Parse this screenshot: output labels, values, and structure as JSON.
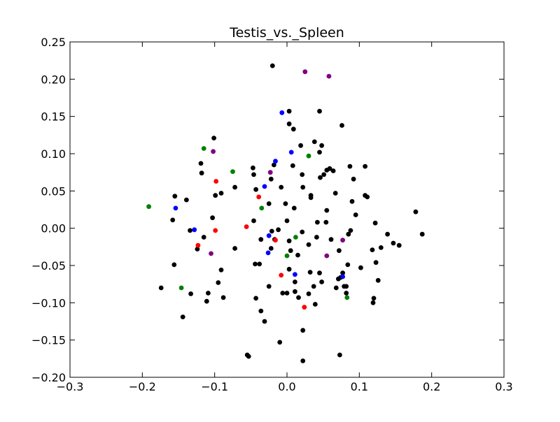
{
  "chart_data": {
    "type": "scatter",
    "title": "Testis_vs._Spleen",
    "xlabel": "",
    "ylabel": "",
    "xlim": [
      -0.3,
      0.3
    ],
    "ylim": [
      -0.2,
      0.25
    ],
    "x_ticks": [
      -0.3,
      -0.2,
      -0.1,
      0.0,
      0.1,
      0.2,
      0.3
    ],
    "x_tick_labels": [
      "−0.3",
      "−0.2",
      "−0.1",
      "0.0",
      "0.1",
      "0.2",
      "0.3"
    ],
    "y_ticks": [
      -0.2,
      -0.15,
      -0.1,
      -0.05,
      0.0,
      0.05,
      0.1,
      0.15,
      0.2,
      0.25
    ],
    "y_tick_labels": [
      "−0.20",
      "−0.15",
      "−0.10",
      "−0.05",
      "0.00",
      "0.05",
      "0.10",
      "0.15",
      "0.20",
      "0.25"
    ],
    "grid": false,
    "legend": "none",
    "colors": {
      "black": "#000000",
      "blue": "#0000ff",
      "red": "#ff0000",
      "green": "#008000",
      "purple": "#800080"
    },
    "series": [
      {
        "color": "#000000",
        "points": [
          [
            -0.02,
            0.218
          ],
          [
            0.045,
            0.157
          ],
          [
            0.003,
            0.157
          ],
          [
            0.076,
            0.138
          ],
          [
            0.003,
            0.14
          ],
          [
            0.009,
            0.133
          ],
          [
            -0.101,
            0.121
          ],
          [
            0.038,
            0.116
          ],
          [
            0.048,
            0.111
          ],
          [
            0.019,
            0.111
          ],
          [
            0.045,
            0.102
          ],
          [
            -0.119,
            0.087
          ],
          [
            -0.018,
            0.085
          ],
          [
            0.087,
            0.083
          ],
          [
            0.108,
            0.083
          ],
          [
            0.008,
            0.084
          ],
          [
            -0.047,
            0.081
          ],
          [
            0.059,
            0.08
          ],
          [
            0.055,
            0.078
          ],
          [
            0.064,
            0.077
          ],
          [
            -0.118,
            0.074
          ],
          [
            -0.046,
            0.072
          ],
          [
            0.021,
            0.072
          ],
          [
            0.051,
            0.072
          ],
          [
            0.046,
            0.068
          ],
          [
            -0.022,
            0.066
          ],
          [
            0.092,
            0.066
          ],
          [
            -0.072,
            0.055
          ],
          [
            -0.008,
            0.055
          ],
          [
            0.022,
            0.055
          ],
          [
            -0.043,
            0.052
          ],
          [
            0.067,
            0.047
          ],
          [
            -0.091,
            0.047
          ],
          [
            -0.099,
            0.044
          ],
          [
            0.033,
            0.044
          ],
          [
            0.033,
            0.041
          ],
          [
            0.108,
            0.044
          ],
          [
            0.111,
            0.042
          ],
          [
            -0.155,
            0.043
          ],
          [
            -0.139,
            0.038
          ],
          [
            0.09,
            0.036
          ],
          [
            -0.025,
            0.033
          ],
          [
            -0.002,
            0.033
          ],
          [
            0.01,
            0.027
          ],
          [
            0.055,
            0.024
          ],
          [
            0.178,
            0.022
          ],
          [
            0.095,
            0.018
          ],
          [
            -0.103,
            0.014
          ],
          [
            -0.046,
            0.01
          ],
          [
            0.0,
            0.01
          ],
          [
            0.042,
            0.008
          ],
          [
            0.054,
            0.008
          ],
          [
            0.122,
            0.007
          ],
          [
            -0.158,
            0.011
          ],
          [
            -0.134,
            -0.003
          ],
          [
            -0.012,
            -0.002
          ],
          [
            -0.021,
            -0.004
          ],
          [
            0.021,
            -0.005
          ],
          [
            0.088,
            -0.003
          ],
          [
            0.085,
            -0.008
          ],
          [
            0.139,
            -0.008
          ],
          [
            0.187,
            -0.008
          ],
          [
            -0.115,
            -0.012
          ],
          [
            0.041,
            -0.012
          ],
          [
            -0.036,
            -0.015
          ],
          [
            -0.017,
            -0.015
          ],
          [
            0.061,
            -0.015
          ],
          [
            0.003,
            -0.017
          ],
          [
            0.147,
            -0.02
          ],
          [
            0.155,
            -0.023
          ],
          [
            0.03,
            -0.022
          ],
          [
            0.13,
            -0.026
          ],
          [
            -0.022,
            -0.027
          ],
          [
            -0.072,
            -0.027
          ],
          [
            -0.124,
            -0.028
          ],
          [
            0.072,
            -0.03
          ],
          [
            0.118,
            -0.029
          ],
          [
            0.005,
            -0.03
          ],
          [
            0.015,
            -0.036
          ],
          [
            0.123,
            -0.046
          ],
          [
            0.084,
            -0.049
          ],
          [
            -0.156,
            -0.049
          ],
          [
            -0.044,
            -0.048
          ],
          [
            -0.038,
            -0.048
          ],
          [
            0.003,
            -0.055
          ],
          [
            0.102,
            -0.053
          ],
          [
            -0.091,
            -0.056
          ],
          [
            0.032,
            -0.059
          ],
          [
            0.045,
            -0.06
          ],
          [
            0.077,
            -0.06
          ],
          [
            0.074,
            -0.066
          ],
          [
            0.071,
            -0.068
          ],
          [
            0.126,
            -0.07
          ],
          [
            -0.095,
            -0.073
          ],
          [
            0.011,
            -0.072
          ],
          [
            0.048,
            -0.072
          ],
          [
            -0.174,
            -0.08
          ],
          [
            0.079,
            -0.078
          ],
          [
            0.082,
            -0.078
          ],
          [
            0.037,
            -0.078
          ],
          [
            -0.025,
            -0.078
          ],
          [
            0.068,
            -0.08
          ],
          [
            0.011,
            -0.085
          ],
          [
            -0.109,
            -0.087
          ],
          [
            0.0,
            -0.087
          ],
          [
            -0.006,
            -0.087
          ],
          [
            0.03,
            -0.088
          ],
          [
            -0.133,
            -0.088
          ],
          [
            -0.088,
            -0.093
          ],
          [
            0.016,
            -0.093
          ],
          [
            0.082,
            -0.087
          ],
          [
            -0.043,
            -0.094
          ],
          [
            0.12,
            -0.094
          ],
          [
            0.119,
            -0.1
          ],
          [
            -0.111,
            -0.098
          ],
          [
            0.039,
            -0.102
          ],
          [
            -0.036,
            -0.111
          ],
          [
            -0.031,
            -0.125
          ],
          [
            -0.144,
            -0.119
          ],
          [
            0.022,
            -0.137
          ],
          [
            -0.01,
            -0.153
          ],
          [
            -0.055,
            -0.17
          ],
          [
            -0.053,
            -0.172
          ],
          [
            0.073,
            -0.17
          ],
          [
            0.022,
            -0.178
          ]
        ]
      },
      {
        "color": "#0000ff",
        "points": [
          [
            -0.007,
            0.155
          ],
          [
            0.006,
            0.102
          ],
          [
            -0.016,
            0.09
          ],
          [
            -0.031,
            0.056
          ],
          [
            -0.154,
            0.027
          ],
          [
            -0.128,
            -0.002
          ],
          [
            -0.025,
            -0.01
          ],
          [
            -0.026,
            -0.033
          ],
          [
            0.011,
            -0.062
          ],
          [
            0.077,
            -0.065
          ]
        ]
      },
      {
        "color": "#ff0000",
        "points": [
          [
            -0.098,
            0.063
          ],
          [
            -0.039,
            0.042
          ],
          [
            -0.056,
            0.002
          ],
          [
            -0.099,
            -0.003
          ],
          [
            -0.016,
            -0.016
          ],
          [
            -0.123,
            -0.023
          ],
          [
            -0.008,
            -0.063
          ],
          [
            0.024,
            -0.106
          ]
        ]
      },
      {
        "color": "#008000",
        "points": [
          [
            -0.115,
            0.107
          ],
          [
            0.03,
            0.097
          ],
          [
            -0.075,
            0.076
          ],
          [
            -0.035,
            0.027
          ],
          [
            -0.191,
            0.029
          ],
          [
            0.012,
            -0.012
          ],
          [
            0.0,
            -0.037
          ],
          [
            -0.146,
            -0.08
          ],
          [
            0.083,
            -0.093
          ]
        ]
      },
      {
        "color": "#800080",
        "points": [
          [
            0.025,
            0.21
          ],
          [
            0.058,
            0.204
          ],
          [
            -0.102,
            0.103
          ],
          [
            -0.023,
            0.075
          ],
          [
            0.077,
            -0.016
          ],
          [
            -0.105,
            -0.034
          ],
          [
            0.055,
            -0.037
          ]
        ]
      }
    ]
  }
}
